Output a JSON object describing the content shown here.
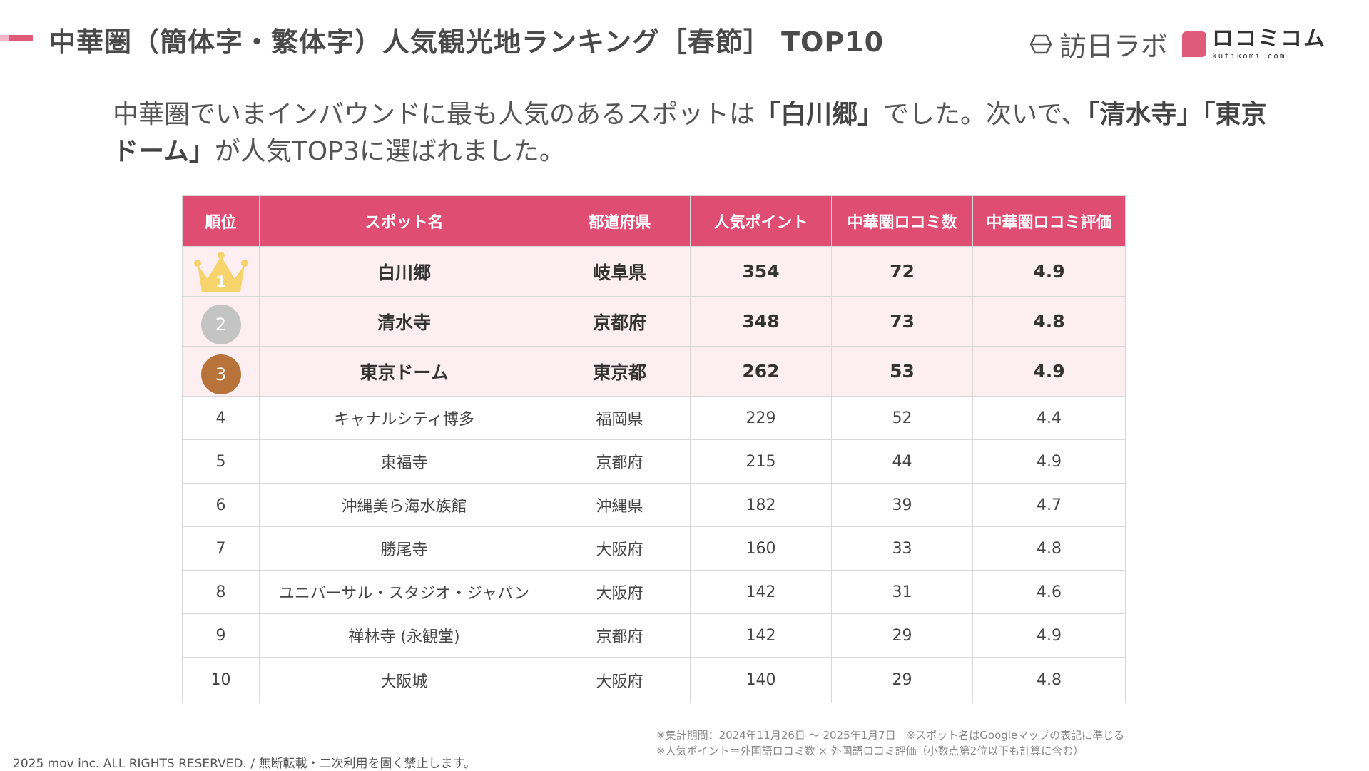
{
  "header": {
    "title": "中華圏（簡体字・繁体字）人気観光地ランキング［春節］ TOP10",
    "logo_houmon": "訪日ラボ",
    "logo_kuchikomi": "ロコミコム",
    "logo_kuchikomi_sub": "kutikomi com"
  },
  "lead": {
    "part1": "中華圏でいまインバウンドに最も人気のあるスポットは",
    "bold1": "「白川郷」",
    "part2": "でした。次いで、",
    "bold2": "「清水寺」「東京ドーム」",
    "part3": "が人気TOP3に選ばれました。"
  },
  "table": {
    "columns": [
      "順位",
      "スポット名",
      "都道府県",
      "人気ポイント",
      "中華圏ロコミ数",
      "中華圏ロコミ評価"
    ],
    "rows": [
      {
        "rank": "1",
        "spot": "白川郷",
        "prefecture": "岐阜県",
        "points": "354",
        "reviews": "72",
        "rating": "4.9"
      },
      {
        "rank": "2",
        "spot": "清水寺",
        "prefecture": "京都府",
        "points": "348",
        "reviews": "73",
        "rating": "4.8"
      },
      {
        "rank": "3",
        "spot": "東京ドーム",
        "prefecture": "東京都",
        "points": "262",
        "reviews": "53",
        "rating": "4.9"
      },
      {
        "rank": "4",
        "spot": "キャナルシティ博多",
        "prefecture": "福岡県",
        "points": "229",
        "reviews": "52",
        "rating": "4.4"
      },
      {
        "rank": "5",
        "spot": "東福寺",
        "prefecture": "京都府",
        "points": "215",
        "reviews": "44",
        "rating": "4.9"
      },
      {
        "rank": "6",
        "spot": "沖縄美ら海水族館",
        "prefecture": "沖縄県",
        "points": "182",
        "reviews": "39",
        "rating": "4.7"
      },
      {
        "rank": "7",
        "spot": "勝尾寺",
        "prefecture": "大阪府",
        "points": "160",
        "reviews": "33",
        "rating": "4.8"
      },
      {
        "rank": "8",
        "spot": "ユニバーサル・スタジオ・ジャパン",
        "prefecture": "大阪府",
        "points": "142",
        "reviews": "31",
        "rating": "4.6"
      },
      {
        "rank": "9",
        "spot": "禅林寺 (永観堂)",
        "prefecture": "京都府",
        "points": "142",
        "reviews": "29",
        "rating": "4.9"
      },
      {
        "rank": "10",
        "spot": "大阪城",
        "prefecture": "大阪府",
        "points": "140",
        "reviews": "29",
        "rating": "4.8"
      }
    ]
  },
  "colors": {
    "accent": "#e04d73",
    "gold": "#f6d36b",
    "silver": "#c4c4c4",
    "bronze": "#b8733a",
    "highlight_row": "#fdeef2"
  },
  "notes": {
    "line1": "※集計期間：2024年11月26日 〜 2025年1月7日　※スポット名はGoogleマップの表記に準じる",
    "line2": "※人気ポイント＝外国語ロコミ数 × 外国語ロコミ評価（小数点第2位以下も計算に含む）"
  },
  "footer": {
    "copyright": "2025 mov inc. ALL RIGHTS RESERVED. / 無断転載・二次利用を固く禁止します。"
  }
}
